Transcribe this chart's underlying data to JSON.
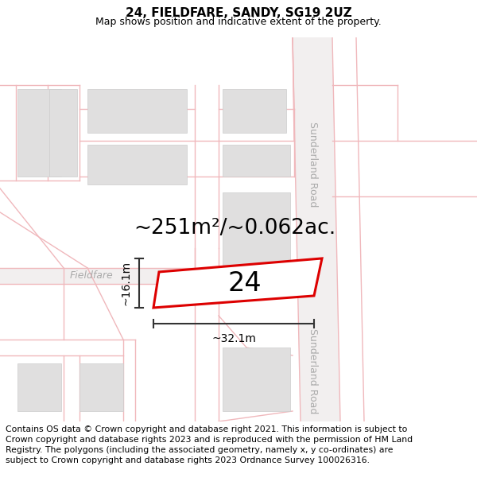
{
  "title": "24, FIELDFARE, SANDY, SG19 2UZ",
  "subtitle": "Map shows position and indicative extent of the property.",
  "area_text": "~251m²/~0.062ac.",
  "plot_number": "24",
  "dim_width": "~32.1m",
  "dim_height": "~16.1m",
  "street_label_left": "Fieldfare",
  "street_label_right": "Sunderland Road",
  "disclaimer": "Contains OS data © Crown copyright and database right 2021. This information is subject to Crown copyright and database rights 2023 and is reproduced with the permission of HM Land Registry. The polygons (including the associated geometry, namely x, y co-ordinates) are subject to Crown copyright and database rights 2023 Ordnance Survey 100026316.",
  "map_bg": "#f7f6f6",
  "road_color": "#f0b8bc",
  "road_lw": 1.0,
  "road_thick_color": "#e8c0c4",
  "plot_fill": "#ffffff",
  "plot_edge": "#dd0000",
  "building_fill": "#e0dfdf",
  "building_edge": "#cccccc",
  "sunderland_road_color": "#e8c8ca",
  "sunderland_road_fill": "#f0ecec",
  "dim_color": "#333333",
  "street_label_color": "#aaaaaa",
  "title_fontsize": 11,
  "subtitle_fontsize": 9,
  "area_fontsize": 19,
  "plot_num_fontsize": 24,
  "dim_fontsize": 10,
  "street_fontsize": 9,
  "disclaimer_fontsize": 7.8
}
